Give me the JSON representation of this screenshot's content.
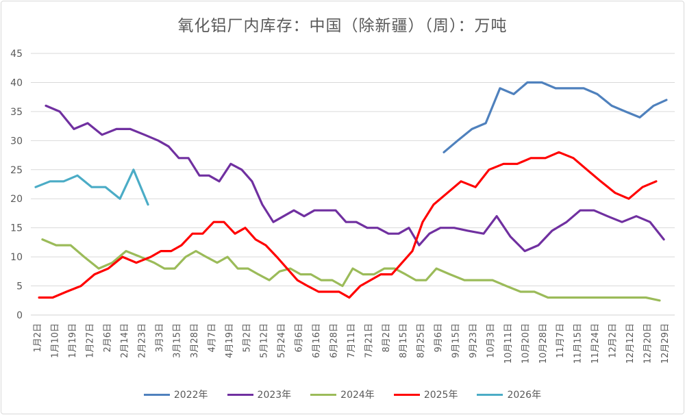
{
  "chart_data": {
    "type": "line",
    "title": "氧化铝厂内库存：中国（除新疆）（周）：万吨",
    "xlabel": "",
    "ylabel": "",
    "ylim": [
      0,
      45
    ],
    "yticks": [
      0,
      5,
      10,
      15,
      20,
      25,
      30,
      35,
      40,
      45
    ],
    "grid": true,
    "legend_position": "bottom",
    "x_note": "x values are positions in category-label index units (0 = 1月2日 ... 36 = 12月29日)",
    "categories": [
      "1月2日",
      "1月10日",
      "1月19日",
      "1月27日",
      "2月6日",
      "2月14日",
      "2月23日",
      "3月3日",
      "3月15日",
      "3月28日",
      "4月7日",
      "4月19日",
      "5月2日",
      "5月12日",
      "5月24日",
      "6月6日",
      "6月16日",
      "6月28日",
      "7月11日",
      "7月21日",
      "8月2日",
      "8月15日",
      "8月25日",
      "9月6日",
      "9月15日",
      "9月23日",
      "10月3日",
      "10月11日",
      "10月20日",
      "10月28日",
      "11月7日",
      "11月15日",
      "11月24日",
      "12月2日",
      "12月12日",
      "12月20日",
      "12月29日"
    ],
    "series": [
      {
        "name": "2022年",
        "color": "#4f81bd",
        "x": [
          23.35,
          24.14,
          24.96,
          25.75,
          26.57,
          27.36,
          28.14,
          28.97,
          29.76,
          30.58,
          31.37,
          32.15,
          32.98,
          33.77,
          34.59,
          35.38,
          36.12
        ],
        "y": [
          28,
          30,
          32,
          33,
          39,
          38,
          40,
          40,
          39,
          39,
          39,
          38,
          36,
          35,
          34,
          36,
          37
        ]
      },
      {
        "name": "2023年",
        "color": "#7030a0",
        "x": [
          0.51,
          1.3,
          2.12,
          2.91,
          3.73,
          4.56,
          5.35,
          6.17,
          6.96,
          7.55,
          8.14,
          8.69,
          9.32,
          9.87,
          10.46,
          11.12,
          11.75,
          12.34,
          12.93,
          13.56,
          14.15,
          14.74,
          15.33,
          15.92,
          16.55,
          17.14,
          17.73,
          18.32,
          18.95,
          19.54,
          20.17,
          20.75,
          21.34,
          21.93,
          22.52,
          23.15,
          23.94,
          24.72,
          25.63,
          26.38,
          27.16,
          27.99,
          28.77,
          29.56,
          30.39,
          31.17,
          31.96,
          32.74,
          33.57,
          34.39,
          35.18,
          35.97
        ],
        "y": [
          36,
          35,
          32,
          33,
          31,
          32,
          32,
          31,
          30,
          29,
          27,
          27,
          24,
          24,
          23,
          26,
          25,
          23,
          19,
          16,
          17,
          18,
          17,
          18,
          18,
          18,
          16,
          16,
          15,
          15,
          14,
          14,
          15,
          12,
          14,
          15,
          15,
          14.5,
          14,
          17,
          13.5,
          11,
          12,
          14.5,
          16,
          18,
          18,
          17,
          16,
          17,
          16,
          13
        ]
      },
      {
        "name": "2024年",
        "color": "#9bbb59",
        "x": [
          0.31,
          1.1,
          1.93,
          2.71,
          3.54,
          4.32,
          5.11,
          5.94,
          6.72,
          7.31,
          7.9,
          8.53,
          9.12,
          9.71,
          10.34,
          10.93,
          11.52,
          12.11,
          12.7,
          13.33,
          13.92,
          14.54,
          15.13,
          15.72,
          16.31,
          16.94,
          17.53,
          18.12,
          18.71,
          19.34,
          19.93,
          20.52,
          21.15,
          21.74,
          22.33,
          22.92,
          23.7,
          24.53,
          25.31,
          26.14,
          26.93,
          27.75,
          28.54,
          29.32,
          30.15,
          30.94,
          31.76,
          32.55,
          33.37,
          34.16,
          34.94,
          35.73
        ],
        "y": [
          13,
          12,
          12,
          10,
          8,
          9,
          11,
          10,
          9,
          8,
          8,
          10,
          11,
          10,
          9,
          10,
          8,
          8,
          7,
          6,
          7.5,
          8,
          7,
          7,
          6,
          6,
          5,
          8,
          7,
          7,
          8,
          8,
          7,
          6,
          6,
          8,
          7,
          6,
          6,
          6,
          5,
          4,
          4,
          3,
          3,
          3,
          3,
          3,
          3,
          3,
          3,
          2.5
        ]
      },
      {
        "name": "2025年",
        "color": "#ff0000",
        "x": [
          0.12,
          0.9,
          1.69,
          2.52,
          3.3,
          4.09,
          4.91,
          5.7,
          6.53,
          7.11,
          7.7,
          8.29,
          8.92,
          9.51,
          10.14,
          10.73,
          11.36,
          11.95,
          12.54,
          13.13,
          13.76,
          14.35,
          14.94,
          15.53,
          16.16,
          16.75,
          17.33,
          17.92,
          18.55,
          19.14,
          19.73,
          20.36,
          20.95,
          21.54,
          22.13,
          22.76,
          23.55,
          24.33,
          25.16,
          25.94,
          26.77,
          27.56,
          28.34,
          29.17,
          29.95,
          30.78,
          31.56,
          32.35,
          33.18,
          33.96,
          34.75,
          35.53
        ],
        "y": [
          3,
          3,
          4,
          5,
          7,
          8,
          10,
          9,
          10,
          11,
          11,
          12,
          14,
          14,
          16,
          16,
          14,
          15,
          13,
          12,
          10,
          8,
          6,
          5,
          4,
          4,
          4,
          3,
          5,
          6,
          7,
          7,
          9,
          11,
          16,
          19,
          21,
          23,
          22,
          25,
          26,
          26,
          27,
          27,
          28,
          27,
          25,
          23,
          21,
          20,
          22,
          23
        ]
      },
      {
        "name": "2026年",
        "color": "#4bacc6",
        "x": [
          -0.08,
          0.75,
          1.53,
          2.32,
          3.14,
          3.93,
          4.76,
          5.54,
          6.37
        ],
        "y": [
          22,
          23,
          23,
          24,
          22,
          22,
          20,
          25,
          19
        ]
      }
    ]
  }
}
